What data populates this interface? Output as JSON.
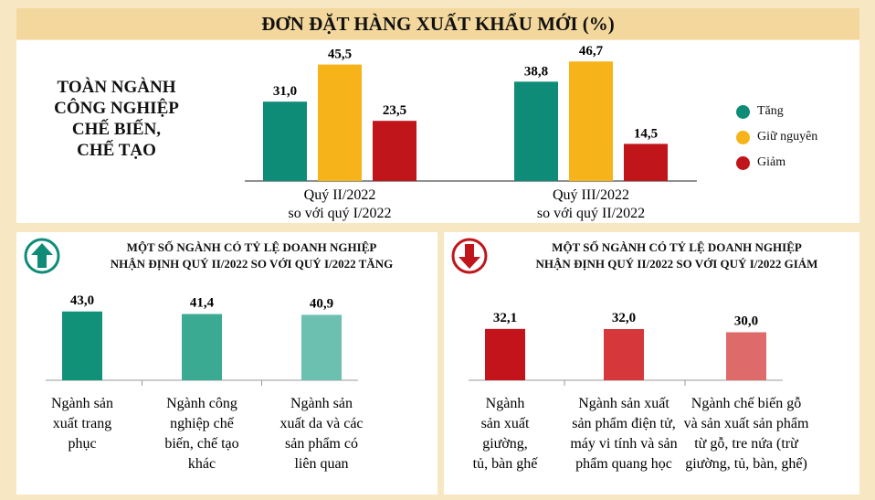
{
  "title": "ĐƠN ĐẶT HÀNG XUẤT KHẨU MỚI (%)",
  "top_chart": {
    "side_label": [
      "TOÀN NGÀNH",
      "CÔNG NGHIỆP",
      "CHẾ BIẾN,",
      "CHẾ TẠO"
    ],
    "legend": [
      {
        "label": "Tăng",
        "color": "#0e8c78"
      },
      {
        "label": "Giữ nguyên",
        "color": "#f6b31a"
      },
      {
        "label": "Giảm",
        "color": "#c0151b"
      }
    ]
  },
  "left_panel": {
    "title": [
      "MỘT SỐ NGÀNH CÓ TỶ LỆ DOANH NGHIỆP",
      "NHẬN ĐỊNH QUÝ II/2022 SO VỚI QUÝ I/2022 TĂNG"
    ],
    "icon": "arrow-up-icon"
  },
  "right_panel": {
    "title": [
      "MỘT SỐ NGÀNH CÓ TỶ LỆ DOANH NGHIỆP",
      "NHẬN ĐỊNH QUÝ II/2022 SO VỚI QUÝ I/2022 GIẢM"
    ],
    "icon": "arrow-down-icon"
  },
  "chart_data": [
    {
      "type": "bar",
      "categories": [
        [
          "Quý II/2022",
          "so với quý I/2022"
        ],
        [
          "Quý III/2022",
          "so với quý II/2022"
        ]
      ],
      "series": [
        {
          "name": "Tăng",
          "values": [
            31.0,
            38.8
          ],
          "labels": [
            "31,0",
            "38,8"
          ],
          "color": "#0e8c78"
        },
        {
          "name": "Giữ nguyên",
          "values": [
            45.5,
            46.7
          ],
          "labels": [
            "45,5",
            "46,7"
          ],
          "color": "#f6b31a"
        },
        {
          "name": "Giảm",
          "values": [
            23.5,
            14.5
          ],
          "labels": [
            "23,5",
            "14,5"
          ],
          "color": "#c0151b"
        }
      ],
      "legend": "right"
    },
    {
      "type": "bar",
      "categories": [
        [
          "Ngành sản",
          "xuất trang",
          "phục"
        ],
        [
          "Ngành công",
          "nghiệp chế",
          "biến, chế tạo",
          "khác"
        ],
        [
          "Ngành sản",
          "xuất da và các",
          "sản phẩm có",
          "liên quan"
        ]
      ],
      "values": [
        43.0,
        41.4,
        40.9
      ],
      "labels": [
        "43,0",
        "41,4",
        "40,9"
      ],
      "colors": [
        "#119178",
        "#3aaa92",
        "#6bc0b0"
      ]
    },
    {
      "type": "bar",
      "categories": [
        [
          "Ngành",
          "sản xuất",
          "giường,",
          "tủ, bàn ghế"
        ],
        [
          "Ngành sản xuất",
          "sản phẩm điện tử,",
          "máy vi tính và sản",
          "phẩm quang học"
        ],
        [
          "Ngành chế biến gỗ",
          "và sản xuất sản phẩm",
          "từ gỗ, tre nứa (trừ",
          "giường, tủ, bàn, ghế)"
        ]
      ],
      "values": [
        32.1,
        32.0,
        30.0
      ],
      "labels": [
        "32,1",
        "32,0",
        "30,0"
      ],
      "colors": [
        "#c4141b",
        "#d5373b",
        "#df6a6a"
      ]
    }
  ]
}
